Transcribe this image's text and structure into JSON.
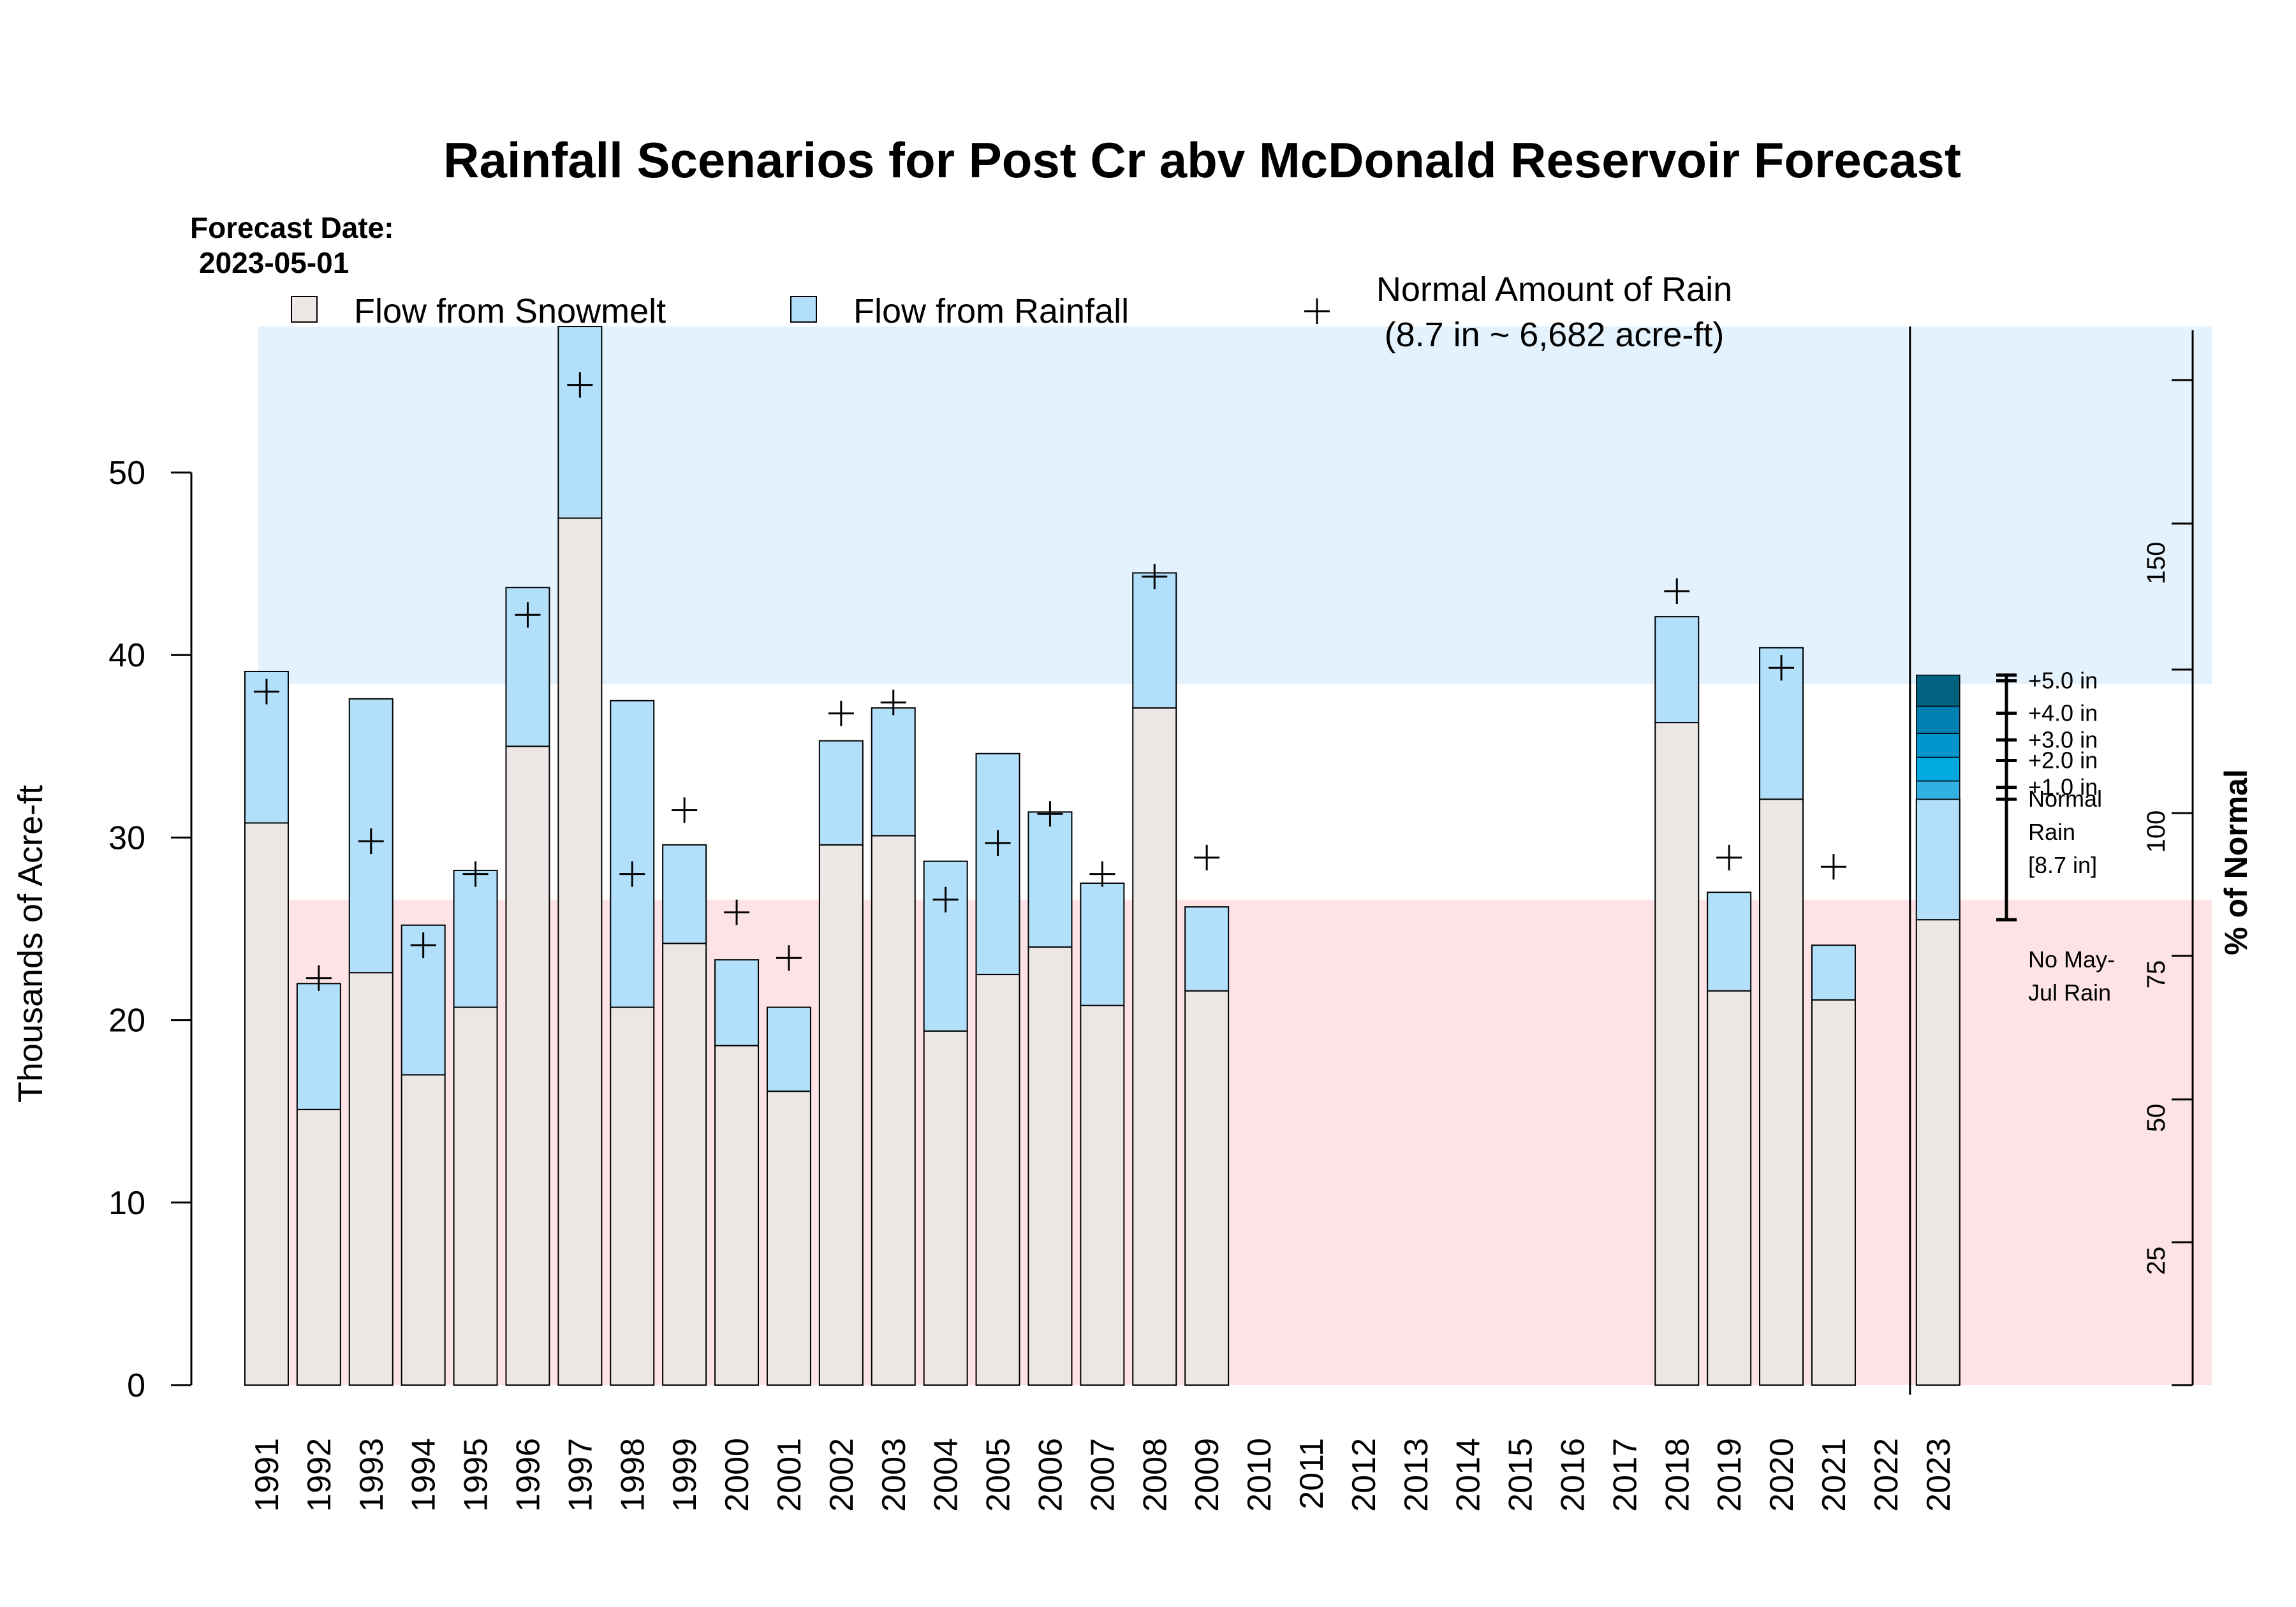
{
  "title": "Rainfall Scenarios for Post Cr abv McDonald Reservoir Forecast",
  "forecast_date": {
    "label": "Forecast Date:",
    "value": "2023-05-01"
  },
  "legend": {
    "snowmelt": "Flow from Snowmelt",
    "rainfall": "Flow from Rainfall",
    "normal_line1": "Normal Amount of Rain",
    "normal_line2": "(8.7 in ~ 6,682 acre-ft)"
  },
  "colors": {
    "snowmelt": "#ece6e5",
    "rainfall": "#b2e0fb",
    "above_band": "#e3f2fd",
    "below_band": "#fde3e6",
    "scenario_colors": [
      "#33b0e2",
      "#00a9e0",
      "#0096cc",
      "#007fb0",
      "#00627f"
    ]
  },
  "chart_data": {
    "type": "bar",
    "subtype": "stacked",
    "ylabel": "Thousands of Acre-ft",
    "y2label": "% of Normal",
    "ylim": [
      0,
      58
    ],
    "yticks": [
      "0",
      "10",
      "20",
      "30",
      "40",
      "50"
    ],
    "y2ticks": [
      "25",
      "50",
      "75",
      "100",
      "150"
    ],
    "categories": [
      "1991",
      "1992",
      "1993",
      "1994",
      "1995",
      "1996",
      "1997",
      "1998",
      "1999",
      "2000",
      "2001",
      "2002",
      "2003",
      "2004",
      "2005",
      "2006",
      "2007",
      "2008",
      "2009",
      "2010",
      "2011",
      "2012",
      "2013",
      "2014",
      "2015",
      "2016",
      "2017",
      "2018",
      "2019",
      "2020",
      "2021",
      "2022",
      "2023"
    ],
    "series": [
      {
        "name": "Flow from Snowmelt",
        "values": [
          30.8,
          15.1,
          22.6,
          17.0,
          20.7,
          35.0,
          47.5,
          20.7,
          24.2,
          18.6,
          16.1,
          29.6,
          30.1,
          19.4,
          22.5,
          24.0,
          20.8,
          37.1,
          21.6,
          null,
          null,
          null,
          null,
          null,
          null,
          null,
          null,
          36.3,
          21.6,
          32.1,
          21.1,
          null,
          25.5
        ]
      },
      {
        "name": "Flow from Rainfall",
        "values": [
          8.3,
          6.9,
          15.0,
          8.2,
          7.5,
          8.7,
          10.5,
          16.8,
          5.4,
          4.7,
          4.6,
          5.7,
          7.0,
          9.3,
          12.1,
          7.4,
          6.7,
          7.4,
          4.6,
          null,
          null,
          null,
          null,
          null,
          null,
          null,
          null,
          5.8,
          5.4,
          8.3,
          3.0,
          null,
          6.6
        ]
      }
    ],
    "normal_rain_markers": [
      38.0,
      22.3,
      29.8,
      24.1,
      28.0,
      42.2,
      54.8,
      28.0,
      31.5,
      25.9,
      23.4,
      36.8,
      37.4,
      26.6,
      29.7,
      31.3,
      28.0,
      44.3,
      28.9,
      null,
      null,
      null,
      null,
      null,
      null,
      null,
      null,
      43.5,
      28.9,
      39.3,
      28.4,
      null,
      null
    ],
    "bands": {
      "below_normal_max": 26.6,
      "above_normal_min": 38.4
    },
    "scenarios": {
      "year": "2023",
      "base_label_lines": [
        "No May-",
        "Jul Rain"
      ],
      "normal_label_lines": [
        "Normal",
        "Rain",
        "[8.7 in]"
      ],
      "steps": [
        {
          "label": "+1.0 in",
          "value": 33.1
        },
        {
          "label": "+2.0 in",
          "value": 34.4
        },
        {
          "label": "+3.0 in",
          "value": 35.7
        },
        {
          "label": "+4.0 in",
          "value": 37.2
        },
        {
          "label": "+5.0 in",
          "value": 38.9
        }
      ],
      "normal_value": 32.1,
      "range": [
        25.5,
        38.9
      ]
    }
  }
}
